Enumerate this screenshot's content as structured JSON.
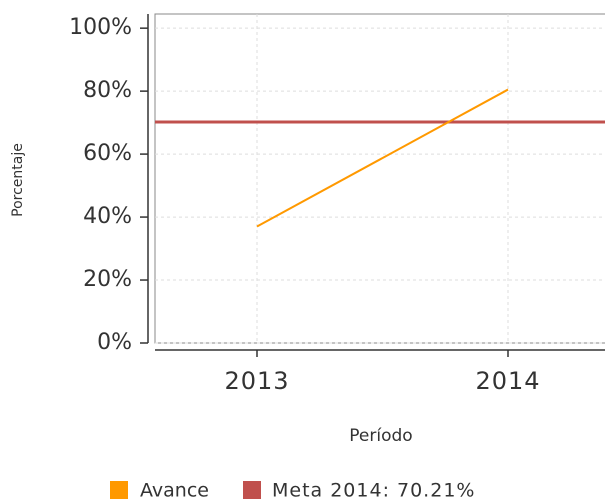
{
  "chart_data": {
    "type": "line",
    "x_label": "Período",
    "y_label": "Porcentaje",
    "categories": [
      "2013",
      "2014"
    ],
    "series": [
      {
        "name": "Avance",
        "color": "#ff9900",
        "values": [
          37,
          80.5
        ]
      }
    ],
    "target": {
      "name": "Meta 2014: 70.21%",
      "value": 70.21,
      "color": "#c0504d"
    },
    "ylim": [
      0,
      104.5
    ],
    "yticks": [
      {
        "value": 0,
        "label": "0%"
      },
      {
        "value": 20,
        "label": "20%"
      },
      {
        "value": 40,
        "label": "40%"
      },
      {
        "value": 60,
        "label": "60%"
      },
      {
        "value": 80,
        "label": "80%"
      },
      {
        "value": 100,
        "label": "100%"
      }
    ],
    "grid": true
  }
}
